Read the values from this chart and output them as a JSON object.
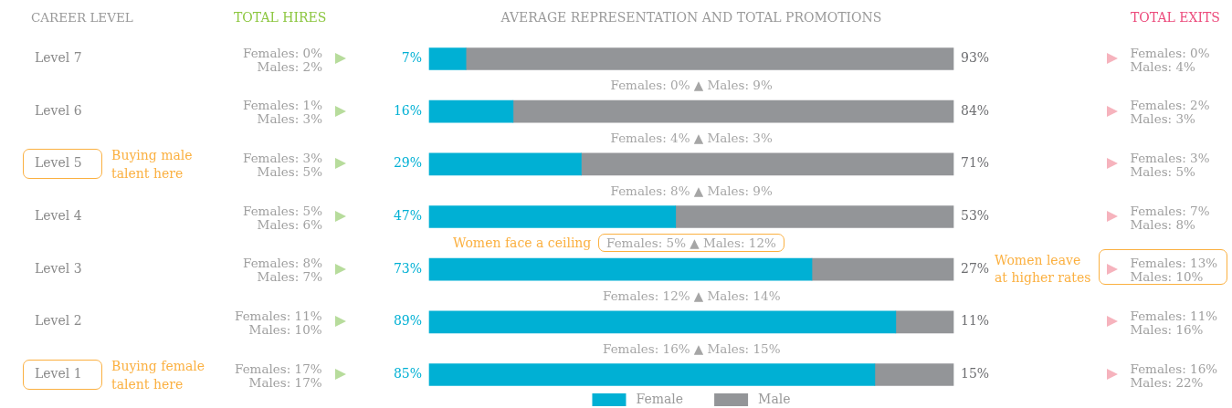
{
  "chart_data": [
    {
      "type": "other",
      "title": "TOTAL HIRES",
      "annotations": [
        "Females: 0%\nMales: 2%",
        "Females: 1%\nMales: 3%",
        "Females: 3%\nMales: 5%",
        "Females: 5%\nMales: 6%",
        "Females: 8%\nMales: 7%",
        "Females: 11%\nMales: 10%",
        "Females: 17%\nMales: 17%"
      ]
    },
    {
      "type": "bar",
      "orientation": "horizontal",
      "stacked": true,
      "title": "AVERAGE REPRESENTATION AND TOTAL PROMOTIONS",
      "ylabel": "CAREER LEVEL",
      "categories": [
        "Level 7",
        "Level 6",
        "Level 5",
        "Level 4",
        "Level 3",
        "Level 2",
        "Level 1"
      ],
      "series": [
        {
          "name": "Female",
          "color": "#00b0d4",
          "values": [
            7,
            16,
            29,
            47,
            73,
            89,
            85
          ],
          "value_labels": [
            "7%",
            "16%",
            "29%",
            "47%",
            "73%",
            "89%",
            "85%"
          ]
        },
        {
          "name": "Male",
          "color": "#939598",
          "values": [
            93,
            84,
            71,
            53,
            27,
            11,
            15
          ],
          "value_labels": [
            "93%",
            "84%",
            "71%",
            "53%",
            "27%",
            "11%",
            "15%"
          ]
        }
      ],
      "legend": "bottom",
      "annotations": [
        "Females: 0% ▲ Males: 9%",
        "Females: 4% ▲ Males: 3%",
        "Females: 8% ▲ Males: 9%",
        "Females: 5% ▲ Males: 12%",
        "Females: 12% ▲ Males: 14%",
        "Females: 16% ▲ Males: 15%",
        "Buying male talent here",
        "Buying female talent here",
        "Women face a ceiling"
      ]
    },
    {
      "type": "other",
      "title": "TOTAL EXITS",
      "annotations": [
        "Females: 0%\nMales: 4%",
        "Females: 2%\nMales: 3%",
        "Females: 3%\nMales: 5%",
        "Females: 7%\nMales: 8%",
        "Females: 13%\nMales: 10%",
        "Females: 11%\nMales: 16%",
        "Females: 16%\nMales: 22%",
        "Women leave at higher rates"
      ]
    }
  ]
}
